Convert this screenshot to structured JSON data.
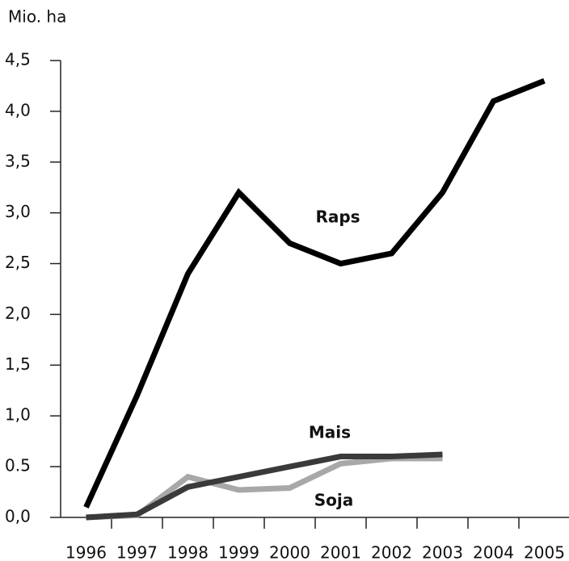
{
  "chart_data": {
    "type": "line",
    "y_label": "Mio. ha",
    "categories": [
      "1996",
      "1997",
      "1998",
      "1999",
      "2000",
      "2001",
      "2002",
      "2003",
      "2004",
      "2005"
    ],
    "series": [
      {
        "name": "Raps",
        "color": "#000000",
        "values": [
          0.1,
          1.2,
          2.4,
          3.2,
          2.7,
          2.5,
          2.6,
          3.2,
          4.1,
          4.3
        ]
      },
      {
        "name": "Soja",
        "color": "#a8a8a8",
        "values": [
          0,
          0.02,
          0.4,
          0.27,
          0.29,
          0.53,
          0.58,
          0.58,
          null,
          null
        ]
      },
      {
        "name": "Mais",
        "color": "#3a3a3a",
        "values": [
          0,
          0.03,
          0.3,
          0.4,
          0.5,
          0.6,
          0.6,
          0.62,
          null,
          null
        ]
      }
    ],
    "ylim": [
      0,
      4.5
    ],
    "yticks": [
      {
        "value": 0,
        "label": "0,0"
      },
      0.5,
      {
        "value": 1,
        "label": "1,0"
      },
      {
        "value": 1.5,
        "label": "1,5"
      },
      {
        "value": 2,
        "label": "2,0"
      },
      {
        "value": 2.5,
        "label": "2,5"
      },
      {
        "value": 3,
        "label": "3,0"
      },
      {
        "value": 3.5,
        "label": "3,5"
      },
      {
        "value": 4,
        "label": "4,0"
      },
      {
        "value": 4.5,
        "label": "4,5"
      }
    ],
    "grid": false
  }
}
